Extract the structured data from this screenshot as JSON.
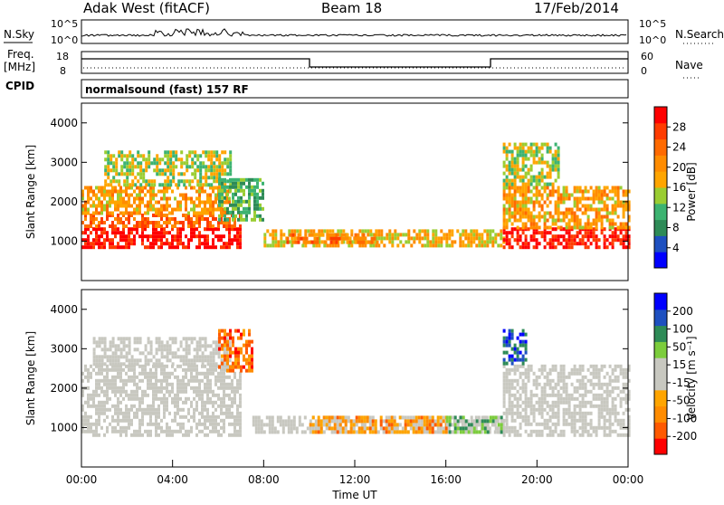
{
  "header": {
    "radar": "Adak West (fitACF)",
    "beam": "Beam 18",
    "date": "17/Feb/2014"
  },
  "noise_panel": {
    "left_label": "N.Sky",
    "left_ticks": [
      "10^5",
      "10^0"
    ],
    "right_ticks": [
      "10^5",
      "10^0"
    ],
    "right_label": "N.Search"
  },
  "freq_panel": {
    "left_label_1": "Freq.",
    "left_label_2": "[MHz]",
    "left_ticks": [
      "18",
      "8"
    ],
    "right_ticks": [
      "60",
      "0"
    ],
    "right_label": "Nave",
    "cpid_label": "CPID"
  },
  "cpid_text": "normalsound (fast) 157 RF",
  "colors": {
    "power": [
      "#0000ff",
      "#1e50c0",
      "#2e8b57",
      "#3cb371",
      "#9acd32",
      "#ffa500",
      "#ff8c00",
      "#ff6a00",
      "#ff3c00",
      "#ff0000"
    ],
    "velocity": [
      "#ff0000",
      "#ff5a00",
      "#ff8c00",
      "#ffa500",
      "#c8c8c0",
      "#c8c8c0",
      "#7ccd3c",
      "#2e8b57",
      "#1e50c0",
      "#0000ff"
    ],
    "ground_scatter": "#c8c8c0"
  },
  "chart_data": [
    {
      "type": "heatmap",
      "name": "Power",
      "ylabel": "Slant Range [km]",
      "ylim": [
        0,
        4500
      ],
      "yticks": [
        "1000",
        "2000",
        "3000",
        "4000"
      ],
      "xlim": [
        0,
        24
      ],
      "colorbar_label": "Power [dB]",
      "colorbar_ticks": [
        "28",
        "24",
        "20",
        "16",
        "12",
        "8",
        "4"
      ],
      "regions": [
        {
          "t0": 0.0,
          "t1": 7.0,
          "r0": 800,
          "r1": 1350,
          "level": 0.95
        },
        {
          "t0": 0.0,
          "t1": 7.0,
          "r0": 1350,
          "r1": 1700,
          "level": 0.75
        },
        {
          "t0": 0.0,
          "t1": 6.5,
          "r0": 1700,
          "r1": 2400,
          "level": 0.6
        },
        {
          "t0": 1.0,
          "t1": 6.5,
          "r0": 2400,
          "r1": 3300,
          "level": 0.45
        },
        {
          "t0": 6.0,
          "t1": 8.0,
          "r0": 1500,
          "r1": 2600,
          "level": 0.35
        },
        {
          "t0": 8.0,
          "t1": 18.5,
          "r0": 900,
          "r1": 1300,
          "level": 0.55
        },
        {
          "t0": 9.0,
          "t1": 13.0,
          "r0": 950,
          "r1": 1200,
          "level": 0.7
        },
        {
          "t0": 18.5,
          "t1": 24.0,
          "r0": 800,
          "r1": 1350,
          "level": 0.95
        },
        {
          "t0": 18.5,
          "t1": 24.0,
          "r0": 1350,
          "r1": 2400,
          "level": 0.6
        },
        {
          "t0": 18.5,
          "t1": 21.0,
          "r0": 2400,
          "r1": 3500,
          "level": 0.45
        }
      ]
    },
    {
      "type": "heatmap",
      "name": "Velocity",
      "ylabel": "Slant Range [km]",
      "ylim": [
        0,
        4500
      ],
      "yticks": [
        "1000",
        "2000",
        "3000",
        "4000"
      ],
      "xlim": [
        0,
        24
      ],
      "xlabel": "Time UT",
      "xticks": [
        "00:00",
        "04:00",
        "08:00",
        "12:00",
        "16:00",
        "20:00",
        "00:00"
      ],
      "colorbar_label": "Velocity [m s⁻¹]",
      "colorbar_ticks": [
        "200",
        "100",
        "50",
        "15",
        "-15",
        "-50",
        "-100",
        "-200"
      ],
      "regions": [
        {
          "t0": 0.0,
          "t1": 7.0,
          "r0": 800,
          "r1": 2600,
          "level": 0.5
        },
        {
          "t0": 0.5,
          "t1": 6.5,
          "r0": 2600,
          "r1": 3300,
          "level": 0.5
        },
        {
          "t0": 6.0,
          "t1": 7.5,
          "r0": 2400,
          "r1": 3500,
          "level": 0.2
        },
        {
          "t0": 7.5,
          "t1": 18.5,
          "r0": 900,
          "r1": 1300,
          "level": 0.5
        },
        {
          "t0": 10.0,
          "t1": 16.0,
          "r0": 900,
          "r1": 1300,
          "level": 0.3
        },
        {
          "t0": 16.0,
          "t1": 18.5,
          "r0": 900,
          "r1": 1300,
          "level": 0.65
        },
        {
          "t0": 18.5,
          "t1": 24.0,
          "r0": 800,
          "r1": 2600,
          "level": 0.5
        },
        {
          "t0": 18.5,
          "t1": 19.5,
          "r0": 2600,
          "r1": 3500,
          "level": 0.85
        }
      ]
    }
  ]
}
